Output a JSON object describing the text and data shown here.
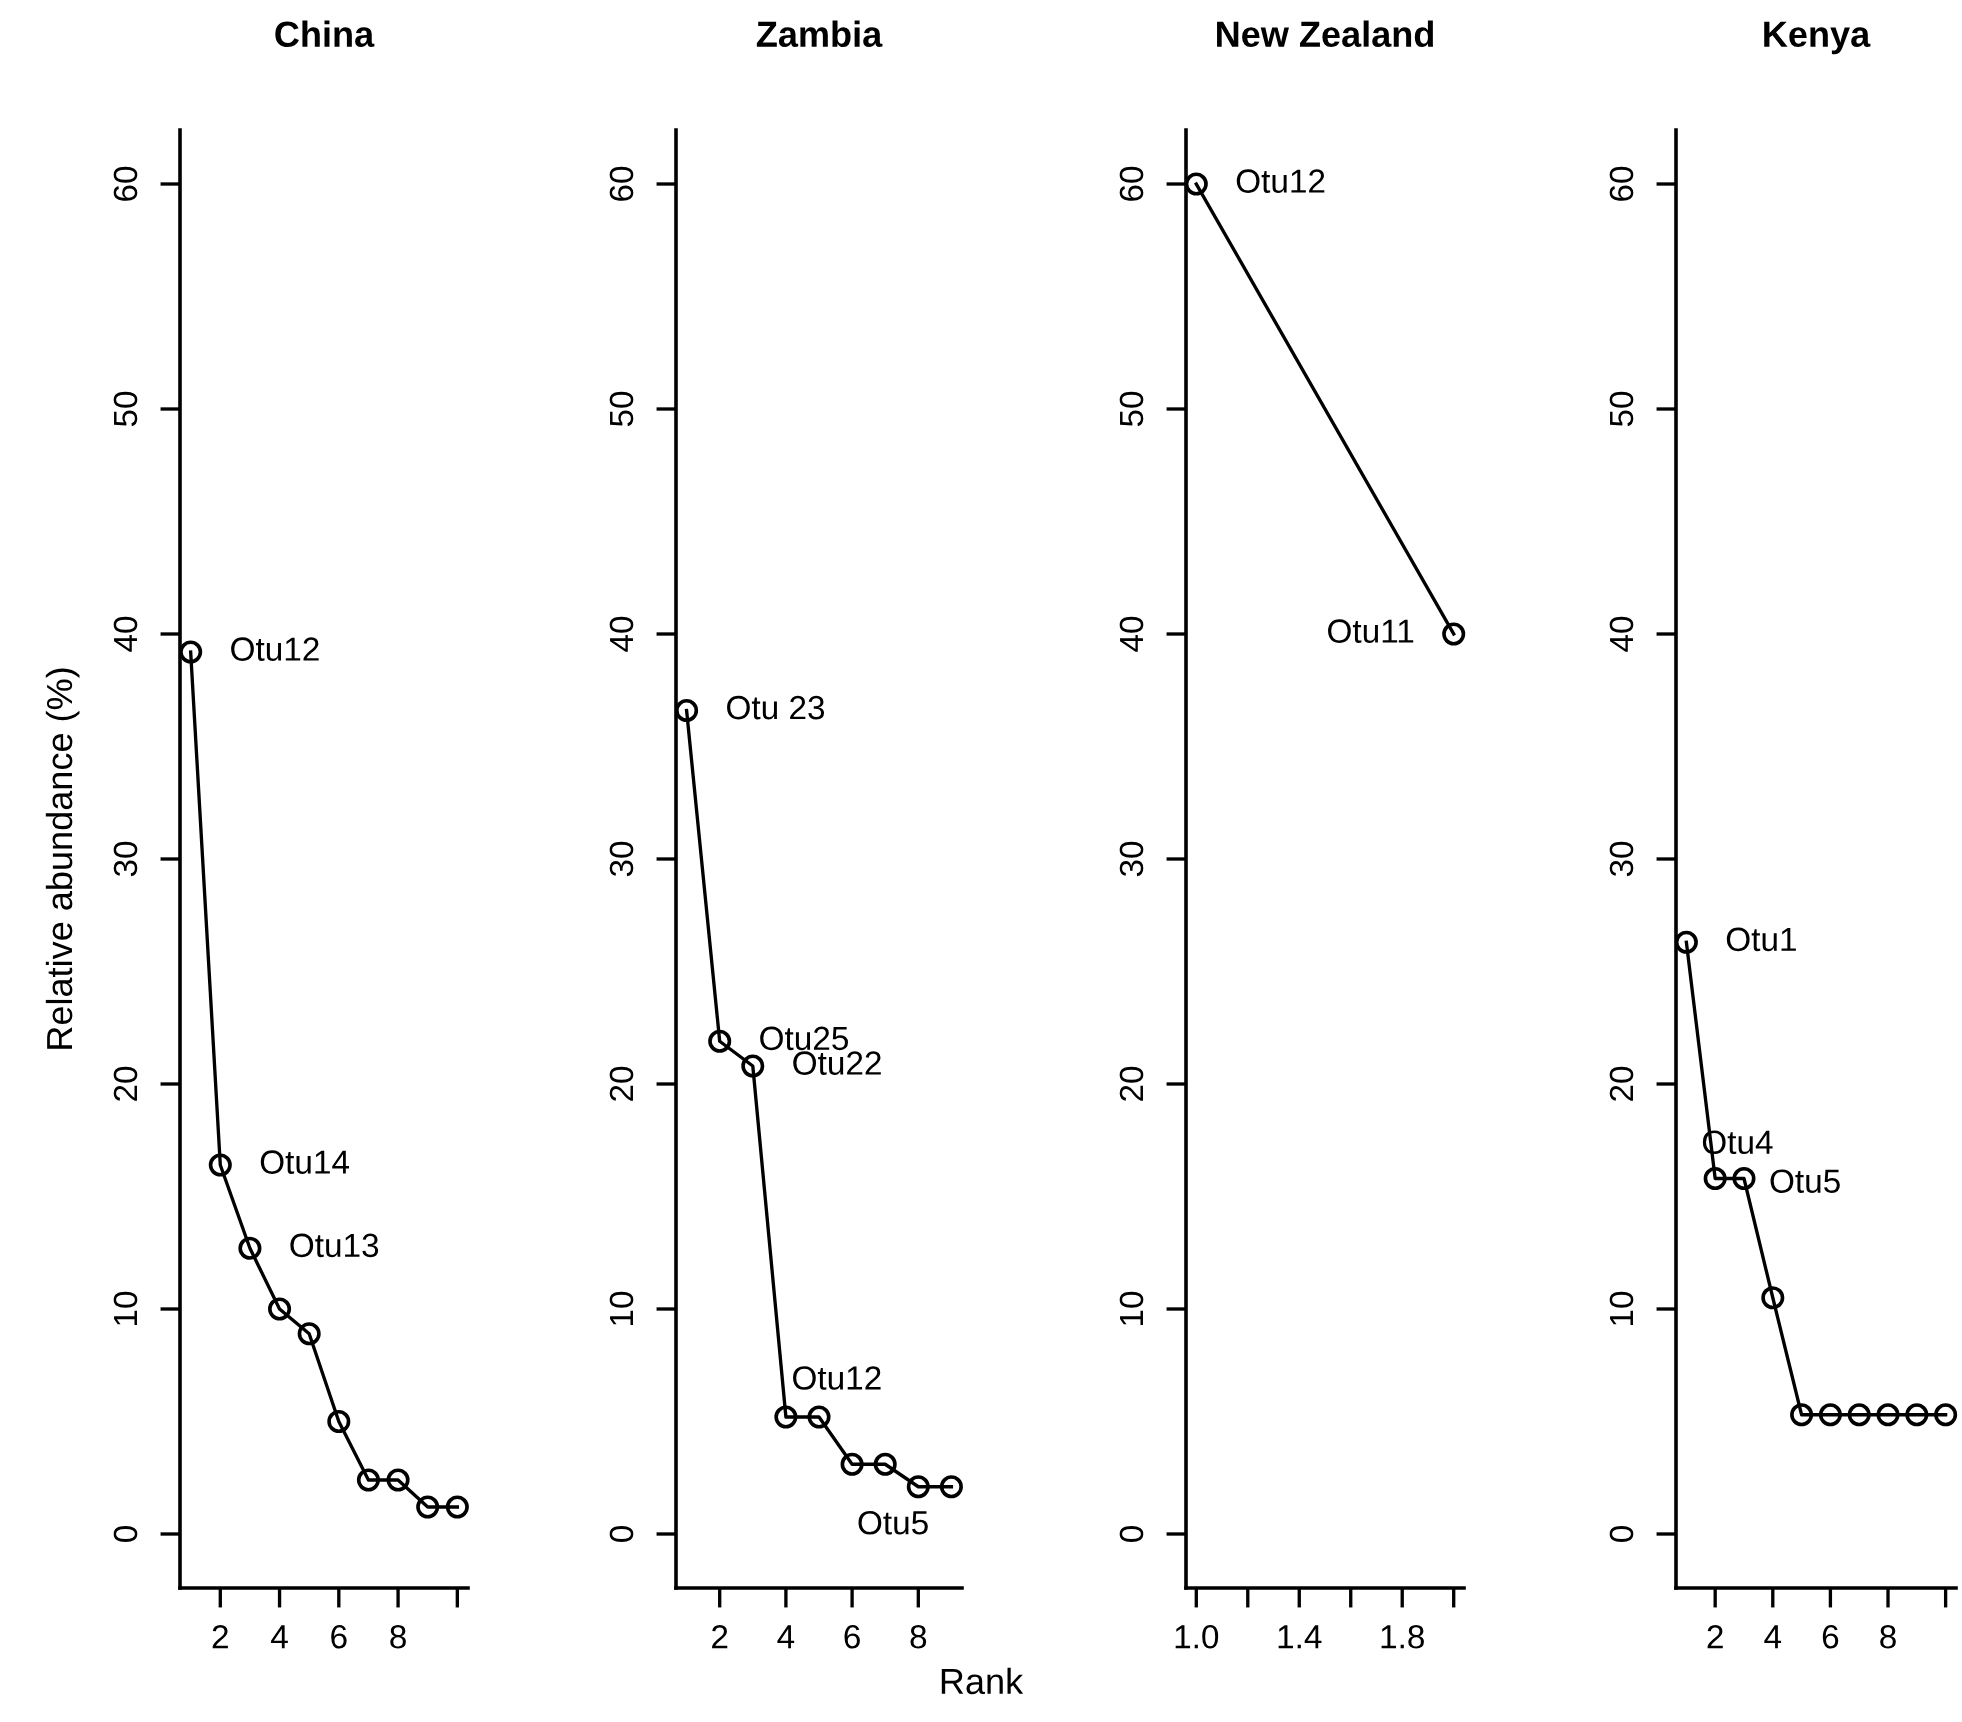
{
  "chart_data": [
    {
      "type": "line",
      "title": "China",
      "ylabel": "Relative abundance (%)",
      "x": [
        1,
        2,
        3,
        4,
        5,
        6,
        7,
        8,
        9,
        10
      ],
      "marker": "circle",
      "series": [
        {
          "color": "#000000",
          "values": [
            39.2,
            16.4,
            12.7,
            10.0,
            8.9,
            5.0,
            2.4,
            2.4,
            1.2,
            1.2
          ]
        }
      ],
      "xlim": [
        0.64,
        10.36
      ],
      "xticks": [
        2,
        4,
        6,
        8,
        {
          "value": 10,
          "label": null
        }
      ],
      "ylim": [
        -2.4,
        62.4
      ],
      "yticks": [
        0,
        10,
        20,
        30,
        40,
        50,
        60
      ],
      "grid": false,
      "annotations": [
        {
          "text": "Otu12",
          "x": 1,
          "y": 39.2
        },
        {
          "text": "Otu14",
          "x": 2,
          "y": 16.4
        },
        {
          "text": "Otu13",
          "x": 3,
          "y": 12.7
        }
      ]
    },
    {
      "type": "line",
      "title": "Zambia",
      "xlabel": "Rank",
      "x": [
        1,
        2,
        3,
        4,
        5,
        6,
        7,
        8,
        9
      ],
      "marker": "circle",
      "series": [
        {
          "color": "#000000",
          "values": [
            36.6,
            21.9,
            20.8,
            5.2,
            5.2,
            3.1,
            3.1,
            2.1,
            2.1
          ]
        }
      ],
      "xlim": [
        0.68,
        9.32
      ],
      "xticks": [
        2,
        4,
        6,
        8
      ],
      "ylim": [
        -2.4,
        62.4
      ],
      "yticks": [
        0,
        10,
        20,
        30,
        40,
        50,
        60
      ],
      "grid": false,
      "annotations": [
        {
          "text": "Otu 23",
          "x": 1,
          "y": 36.6
        },
        {
          "text": "Otu25",
          "x": 2,
          "y": 21.9
        },
        {
          "text": "Otu22",
          "x": 3,
          "y": 20.8
        },
        {
          "text": "Otu12",
          "x": 4,
          "y": 5.2
        },
        {
          "text": "Otu5",
          "x": 9,
          "y": 2.1
        }
      ]
    },
    {
      "type": "line",
      "title": "New Zealand",
      "x": [
        1,
        2
      ],
      "marker": "circle",
      "series": [
        {
          "color": "#000000",
          "values": [
            60,
            40
          ]
        }
      ],
      "xlim": [
        0.96,
        2.04
      ],
      "xticks": [
        {
          "value": 1.0,
          "label": "1.0"
        },
        {
          "value": 1.2,
          "label": null
        },
        {
          "value": 1.4,
          "label": "1.4"
        },
        {
          "value": 1.6,
          "label": null
        },
        {
          "value": 1.8,
          "label": "1.8"
        },
        {
          "value": 2.0,
          "label": null
        }
      ],
      "ylim": [
        -2.4,
        62.4
      ],
      "yticks": [
        0,
        10,
        20,
        30,
        40,
        50,
        60
      ],
      "grid": false,
      "annotations": [
        {
          "text": "Otu12",
          "x": 1,
          "y": 60
        },
        {
          "text": "Otu11",
          "x": 2,
          "y": 40
        }
      ]
    },
    {
      "type": "line",
      "title": "Kenya",
      "x": [
        1,
        2,
        3,
        4,
        5,
        6,
        7,
        8,
        9,
        10
      ],
      "marker": "circle",
      "series": [
        {
          "color": "#000000",
          "values": [
            26.3,
            15.8,
            15.8,
            10.5,
            5.3,
            5.3,
            5.3,
            5.3,
            5.3,
            5.3
          ]
        }
      ],
      "xlim": [
        0.64,
        10.36
      ],
      "xticks": [
        2,
        4,
        6,
        8,
        {
          "value": 10,
          "label": null
        }
      ],
      "ylim": [
        -2.4,
        62.4
      ],
      "yticks": [
        0,
        10,
        20,
        30,
        40,
        50,
        60
      ],
      "grid": false,
      "annotations": [
        {
          "text": "Otu1",
          "x": 1,
          "y": 26.3
        },
        {
          "text": "Otu4",
          "x": 2,
          "y": 15.8
        },
        {
          "text": "Otu5",
          "x": 3,
          "y": 15.8
        }
      ]
    }
  ]
}
